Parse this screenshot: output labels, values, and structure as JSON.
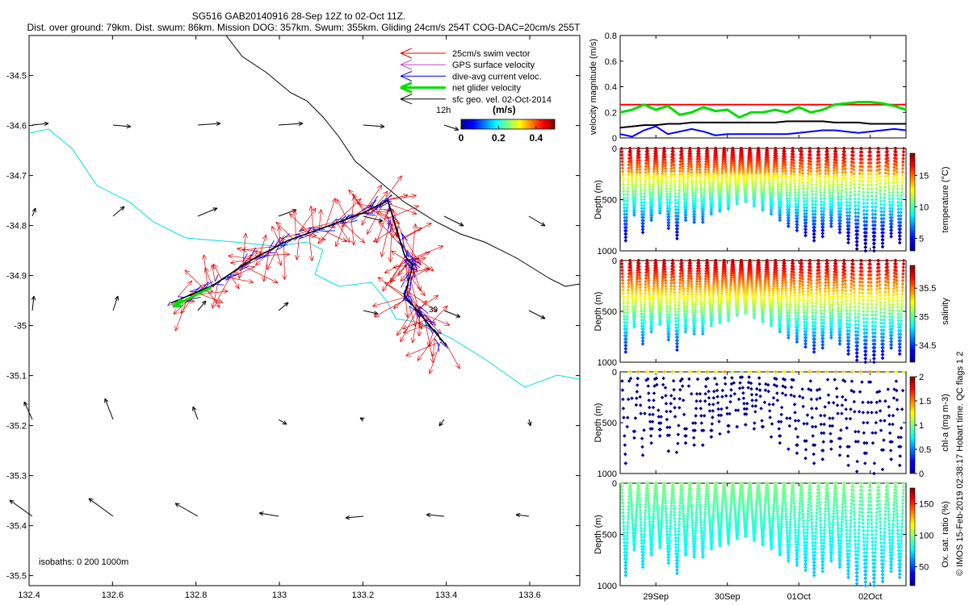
{
  "title_line1": "SG516 GAB20140916 28-Sep 12Z to 02-Oct 11Z.",
  "title_line2": "Dist. over ground: 79km. Dist. swum: 86km. Mission DOG: 357km. Swum: 355km. Gliding 24cm/s 254T COG-DAC=20cm/s 255T",
  "copyright": "© IMOS 15-Feb-2019 02:38:17 Hobart time. QC flags 1  2",
  "map": {
    "xticks": [
      "132.4",
      "132.6",
      "132.8",
      "133",
      "133.2",
      "133.4",
      "133.6"
    ],
    "xtick_values": [
      132.4,
      132.6,
      132.8,
      133.0,
      133.2,
      133.4,
      133.6
    ],
    "yticks": [
      "-34.5",
      "-34.6",
      "-34.7",
      "-34.8",
      "-34.9",
      "-35",
      "-35.1",
      "-35.2",
      "-35.3",
      "-35.4",
      "-35.5"
    ],
    "ytick_values": [
      -34.5,
      -34.6,
      -34.7,
      -34.8,
      -34.9,
      -35.0,
      -35.1,
      -35.2,
      -35.3,
      -35.4,
      -35.5
    ],
    "xlim": [
      132.4,
      133.72
    ],
    "ylim": [
      -35.52,
      -34.42
    ],
    "legend": [
      {
        "label": "25cm/s swim vector",
        "color": "#e00000"
      },
      {
        "label": "GPS surface velocity",
        "color": "#c040e0"
      },
      {
        "label": "dive-avg current veloc.",
        "color": "#0000ff"
      },
      {
        "label": "net glider velocity",
        "color": "#00e000"
      },
      {
        "label": "sfc geo. vel. 02-Oct-2014",
        "color": "#000000"
      }
    ],
    "legend_12h": "12h",
    "colorbar_unit": "(m/s)",
    "colorbar_ticks": [
      "0",
      "0.2",
      "0.4"
    ],
    "colorbar_tick_values": [
      0,
      0.2,
      0.4
    ],
    "colorbar_range": [
      0,
      0.5
    ],
    "isobaths": "isobaths: 0   200  1000m",
    "point_label": "39",
    "track": [
      [
        132.74,
        -34.955
      ],
      [
        132.84,
        -34.92
      ],
      [
        132.93,
        -34.87
      ],
      [
        133.02,
        -34.83
      ],
      [
        133.12,
        -34.8
      ],
      [
        133.2,
        -34.775
      ],
      [
        133.26,
        -34.75
      ],
      [
        133.3,
        -34.86
      ],
      [
        133.32,
        -34.88
      ],
      [
        133.3,
        -34.94
      ],
      [
        133.34,
        -34.98
      ],
      [
        133.4,
        -35.04
      ]
    ]
  },
  "panels": [
    {
      "ylabel": "velocity magnitude (m/s)",
      "yticks": [
        "0",
        "0.2",
        "0.4",
        "0.6",
        "0.8"
      ],
      "ytick_values": [
        0,
        0.2,
        0.4,
        0.6,
        0.8
      ],
      "ylim": [
        0,
        0.8
      ]
    },
    {
      "ylabel": "Depth (m)",
      "yticks": [
        "0",
        "500",
        "1000"
      ],
      "ytick_values": [
        0,
        500,
        1000
      ],
      "cbar_label": "temperature (°C)",
      "cbar_ticks": [
        "5",
        "10",
        "15"
      ],
      "cbar_tick_values": [
        5,
        10,
        15
      ],
      "cbar_range": [
        3,
        18.5
      ]
    },
    {
      "ylabel": "Depth (m)",
      "yticks": [
        "0",
        "500",
        "1000"
      ],
      "ytick_values": [
        0,
        500,
        1000
      ],
      "cbar_label": "salinity",
      "cbar_ticks": [
        "34.5",
        "35",
        "35.5"
      ],
      "cbar_tick_values": [
        34.5,
        35,
        35.5
      ],
      "cbar_range": [
        34.2,
        35.9
      ]
    },
    {
      "ylabel": "Depth (m)",
      "yticks": [
        "0",
        "500",
        "1000"
      ],
      "ytick_values": [
        0,
        500,
        1000
      ],
      "cbar_label": "chl-a (mg m-3)",
      "cbar_ticks": [
        "0",
        "0.5",
        "1",
        "1.5",
        "2"
      ],
      "cbar_tick_values": [
        0,
        0.5,
        1,
        1.5,
        2
      ],
      "cbar_range": [
        0,
        2
      ]
    },
    {
      "ylabel": "Depth (m)",
      "yticks": [
        "0",
        "500",
        "1000"
      ],
      "ytick_values": [
        0,
        500,
        1000
      ],
      "cbar_label": "Ox. sat. ratio (%)",
      "cbar_ticks": [
        "50",
        "100",
        "150"
      ],
      "cbar_tick_values": [
        50,
        100,
        150
      ],
      "cbar_range": [
        20,
        175
      ]
    }
  ],
  "time_axis": {
    "labels": [
      "29Sep",
      "30Sep",
      "01Oct",
      "02Oct"
    ],
    "values": [
      0.5,
      1.5,
      2.5,
      3.5
    ],
    "range": [
      0,
      4
    ]
  },
  "chart_data": {
    "type": "scatter",
    "velocity_series": [
      {
        "color": "#ff0000",
        "values": [
          0.26,
          0.26,
          0.26,
          0.26,
          0.26,
          0.26,
          0.26,
          0.26,
          0.26,
          0.26,
          0.26,
          0.26,
          0.26,
          0.26,
          0.26,
          0.26,
          0.26,
          0.26,
          0.26,
          0.26,
          0.26,
          0.26,
          0.26,
          0.26,
          0.26
        ]
      },
      {
        "color": "#00dd00",
        "values": [
          0.2,
          0.22,
          0.26,
          0.22,
          0.25,
          0.18,
          0.2,
          0.24,
          0.21,
          0.22,
          0.16,
          0.2,
          0.2,
          0.22,
          0.2,
          0.24,
          0.2,
          0.22,
          0.26,
          0.27,
          0.28,
          0.28,
          0.27,
          0.25,
          0.22
        ]
      },
      {
        "color": "#000000",
        "values": [
          0.08,
          0.09,
          0.1,
          0.1,
          0.11,
          0.11,
          0.12,
          0.12,
          0.12,
          0.12,
          0.12,
          0.12,
          0.12,
          0.12,
          0.13,
          0.13,
          0.13,
          0.13,
          0.12,
          0.12,
          0.12,
          0.11,
          0.11,
          0.11,
          0.11
        ]
      },
      {
        "color": "#0000ff",
        "values": [
          0.03,
          0.01,
          0.06,
          0.09,
          0.03,
          0.05,
          0.07,
          0.05,
          0.02,
          0.03,
          0.03,
          0.03,
          0.03,
          0.03,
          0.03,
          0.04,
          0.05,
          0.06,
          0.06,
          0.05,
          0.04,
          0.05,
          0.06,
          0.07,
          0.06
        ]
      }
    ],
    "dive_depths": [
      900,
      650,
      820,
      700,
      630,
      780,
      880,
      700,
      720,
      720,
      640,
      610,
      590,
      540,
      520,
      560,
      600,
      640,
      700,
      760,
      800,
      850,
      900,
      860,
      760,
      820,
      920,
      980,
      1000,
      1000,
      960,
      860,
      920
    ]
  }
}
